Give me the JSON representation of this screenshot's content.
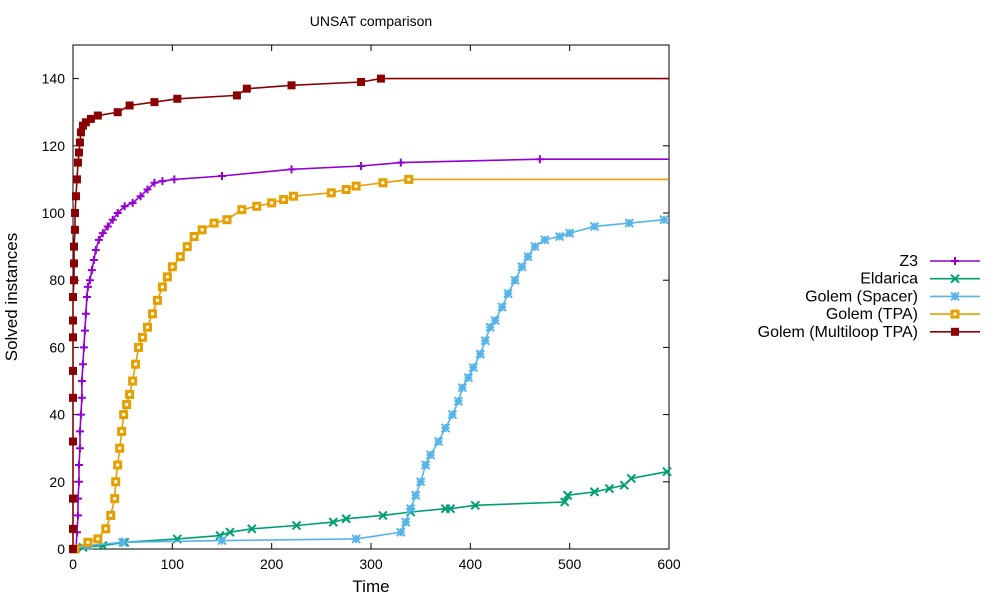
{
  "chart_data": {
    "type": "line",
    "title": "UNSAT comparison",
    "xlabel": "Time",
    "ylabel": "Solved instances",
    "xlim": [
      0,
      600
    ],
    "ylim": [
      0,
      150
    ],
    "xticks": [
      0,
      100,
      200,
      300,
      400,
      500,
      600
    ],
    "yticks": [
      0,
      20,
      40,
      60,
      80,
      100,
      120,
      140
    ],
    "grid": false,
    "legend_position": "right",
    "series": [
      {
        "name": "Z3",
        "color": "#9400d3",
        "marker": "plus",
        "points": [
          [
            3,
            0
          ],
          [
            4,
            5
          ],
          [
            5,
            10
          ],
          [
            5,
            15
          ],
          [
            6,
            20
          ],
          [
            6,
            25
          ],
          [
            7,
            30
          ],
          [
            7,
            35
          ],
          [
            8,
            40
          ],
          [
            9,
            45
          ],
          [
            9,
            50
          ],
          [
            10,
            55
          ],
          [
            11,
            60
          ],
          [
            12,
            65
          ],
          [
            13,
            70
          ],
          [
            14,
            75
          ],
          [
            15,
            78
          ],
          [
            17,
            80
          ],
          [
            19,
            83
          ],
          [
            21,
            86
          ],
          [
            23,
            89
          ],
          [
            26,
            92
          ],
          [
            30,
            94
          ],
          [
            35,
            96
          ],
          [
            40,
            98
          ],
          [
            45,
            100
          ],
          [
            52,
            102
          ],
          [
            60,
            103
          ],
          [
            68,
            105
          ],
          [
            75,
            107
          ],
          [
            82,
            109
          ],
          [
            90,
            109.5
          ],
          [
            102,
            110
          ],
          [
            150,
            111
          ],
          [
            220,
            113
          ],
          [
            290,
            114
          ],
          [
            330,
            115
          ],
          [
            470,
            116
          ],
          [
            600,
            116
          ]
        ]
      },
      {
        "name": "Eldarica",
        "color": "#009e73",
        "marker": "cross",
        "points": [
          [
            2,
            0
          ],
          [
            10,
            0.5
          ],
          [
            30,
            1
          ],
          [
            52,
            2
          ],
          [
            105,
            3
          ],
          [
            148,
            4
          ],
          [
            158,
            5
          ],
          [
            180,
            6
          ],
          [
            225,
            7
          ],
          [
            262,
            8
          ],
          [
            275,
            9
          ],
          [
            312,
            10
          ],
          [
            340,
            11
          ],
          [
            375,
            12
          ],
          [
            380,
            12
          ],
          [
            405,
            13
          ],
          [
            495,
            14
          ],
          [
            498,
            16
          ],
          [
            525,
            17
          ],
          [
            540,
            18
          ],
          [
            555,
            19
          ],
          [
            562,
            21
          ],
          [
            598,
            23
          ],
          [
            600,
            22
          ]
        ]
      },
      {
        "name": "Golem (Spacer)",
        "color": "#56b4e9",
        "marker": "box",
        "points": [
          [
            2,
            0
          ],
          [
            15,
            1
          ],
          [
            50,
            2
          ],
          [
            150,
            2.5
          ],
          [
            285,
            3
          ],
          [
            330,
            5
          ],
          [
            335,
            8
          ],
          [
            340,
            12
          ],
          [
            345,
            16
          ],
          [
            350,
            20
          ],
          [
            355,
            25
          ],
          [
            360,
            28
          ],
          [
            368,
            32
          ],
          [
            375,
            36
          ],
          [
            382,
            40
          ],
          [
            388,
            44
          ],
          [
            392,
            48
          ],
          [
            398,
            51
          ],
          [
            403,
            54
          ],
          [
            410,
            58
          ],
          [
            415,
            62
          ],
          [
            420,
            66
          ],
          [
            425,
            68
          ],
          [
            432,
            72
          ],
          [
            438,
            76
          ],
          [
            445,
            80
          ],
          [
            452,
            84
          ],
          [
            458,
            87
          ],
          [
            465,
            90
          ],
          [
            475,
            92
          ],
          [
            490,
            93
          ],
          [
            500,
            94
          ],
          [
            525,
            96
          ],
          [
            560,
            97
          ],
          [
            595,
            98
          ],
          [
            600,
            98
          ]
        ]
      },
      {
        "name": "Golem (TPA)",
        "color": "#e69f00",
        "marker": "boxopen",
        "points": [
          [
            2,
            0
          ],
          [
            15,
            2
          ],
          [
            25,
            3
          ],
          [
            33,
            6
          ],
          [
            38,
            10
          ],
          [
            42,
            15
          ],
          [
            43,
            20
          ],
          [
            45,
            25
          ],
          [
            47,
            30
          ],
          [
            49,
            35
          ],
          [
            51,
            40
          ],
          [
            54,
            43
          ],
          [
            57,
            46
          ],
          [
            60,
            50
          ],
          [
            63,
            55
          ],
          [
            66,
            60
          ],
          [
            70,
            63
          ],
          [
            75,
            66
          ],
          [
            80,
            70
          ],
          [
            85,
            74
          ],
          [
            90,
            78
          ],
          [
            95,
            81
          ],
          [
            100,
            84
          ],
          [
            108,
            87
          ],
          [
            115,
            90
          ],
          [
            122,
            93
          ],
          [
            130,
            95
          ],
          [
            142,
            97
          ],
          [
            155,
            98
          ],
          [
            170,
            101
          ],
          [
            185,
            102
          ],
          [
            200,
            103
          ],
          [
            212,
            104
          ],
          [
            222,
            105
          ],
          [
            260,
            106
          ],
          [
            275,
            107
          ],
          [
            285,
            108
          ],
          [
            312,
            109
          ],
          [
            338,
            110
          ],
          [
            600,
            110
          ]
        ]
      },
      {
        "name": "Golem (Multiloop TPA)",
        "color": "#8b0000",
        "marker": "boxfill",
        "points": [
          [
            0,
            0
          ],
          [
            0,
            6
          ],
          [
            0,
            15
          ],
          [
            0,
            32
          ],
          [
            0,
            45
          ],
          [
            0,
            53
          ],
          [
            0,
            63
          ],
          [
            0,
            68
          ],
          [
            0,
            75
          ],
          [
            1,
            80
          ],
          [
            1,
            85
          ],
          [
            1,
            90
          ],
          [
            2,
            95
          ],
          [
            2,
            100
          ],
          [
            3,
            105
          ],
          [
            4,
            110
          ],
          [
            5,
            115
          ],
          [
            6,
            118
          ],
          [
            7,
            121
          ],
          [
            8,
            124
          ],
          [
            10,
            126
          ],
          [
            13,
            127
          ],
          [
            18,
            128
          ],
          [
            25,
            129
          ],
          [
            45,
            130
          ],
          [
            57,
            132
          ],
          [
            82,
            133
          ],
          [
            105,
            134
          ],
          [
            165,
            135
          ],
          [
            175,
            137
          ],
          [
            220,
            138
          ],
          [
            290,
            139
          ],
          [
            310,
            140
          ],
          [
            600,
            140
          ]
        ]
      }
    ]
  }
}
